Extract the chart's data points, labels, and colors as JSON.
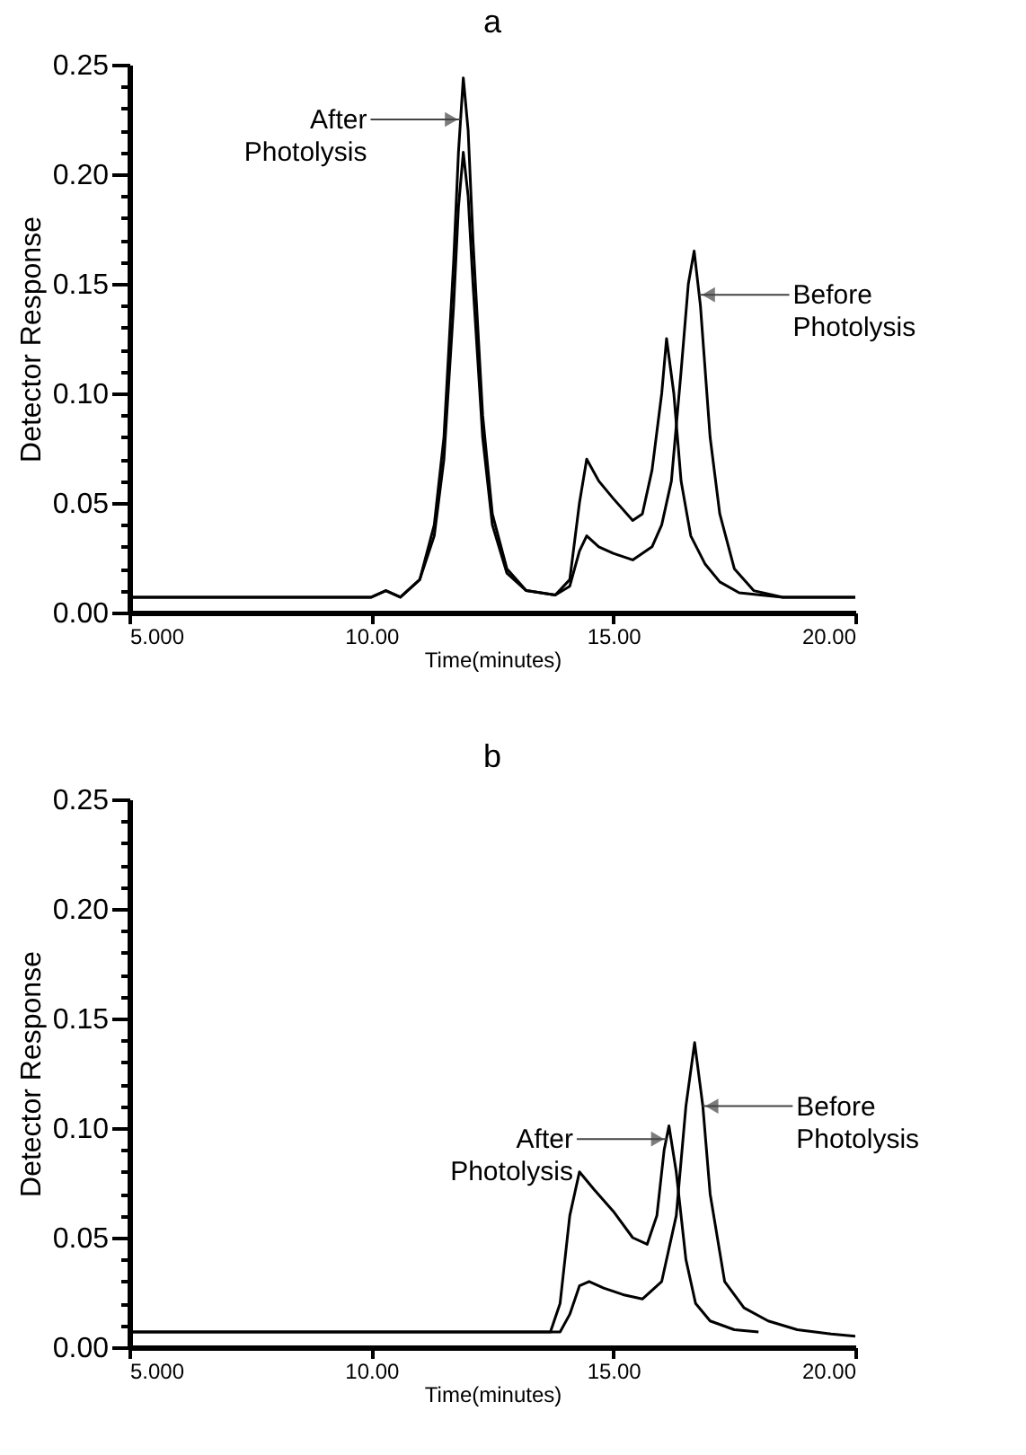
{
  "chart_data": [
    {
      "type": "line",
      "title": "a",
      "xlabel": "Time(minutes)",
      "ylabel": "Detector Response",
      "xlim": [
        5,
        20
      ],
      "xticks": [
        {
          "value": 5,
          "label": "5.000"
        },
        {
          "value": 10,
          "label": "10.00"
        },
        {
          "value": 15,
          "label": "15.00"
        },
        {
          "value": 20,
          "label": "20.00"
        }
      ],
      "ylim": [
        0,
        0.25
      ],
      "yticks": [
        {
          "value": 0,
          "label": "0.00"
        },
        {
          "value": 0.01,
          "label": null
        },
        {
          "value": 0.02,
          "label": null
        },
        {
          "value": 0.03,
          "label": null
        },
        {
          "value": 0.04,
          "label": null
        },
        {
          "value": 0.05,
          "label": "0.05"
        },
        {
          "value": 0.06,
          "label": null
        },
        {
          "value": 0.07,
          "label": null
        },
        {
          "value": 0.08,
          "label": null
        },
        {
          "value": 0.09,
          "label": null
        },
        {
          "value": 0.1,
          "label": "0.10"
        },
        {
          "value": 0.11,
          "label": null
        },
        {
          "value": 0.12,
          "label": null
        },
        {
          "value": 0.13,
          "label": null
        },
        {
          "value": 0.14,
          "label": null
        },
        {
          "value": 0.15,
          "label": "0.15"
        },
        {
          "value": 0.16,
          "label": null
        },
        {
          "value": 0.17,
          "label": null
        },
        {
          "value": 0.18,
          "label": null
        },
        {
          "value": 0.19,
          "label": null
        },
        {
          "value": 0.2,
          "label": "0.20"
        },
        {
          "value": 0.21,
          "label": null
        },
        {
          "value": 0.22,
          "label": null
        },
        {
          "value": 0.23,
          "label": null
        },
        {
          "value": 0.24,
          "label": null
        },
        {
          "value": 0.25,
          "label": "0.25"
        }
      ],
      "series": [
        {
          "color": "#000000",
          "x": [
            5,
            10,
            10.3,
            10.6,
            11,
            11.3,
            11.5,
            11.7,
            11.8,
            11.9,
            12,
            12.1,
            12.3,
            12.5,
            12.8,
            13.2,
            13.8,
            14.1,
            14.3,
            14.45,
            14.7,
            15,
            15.4,
            15.6,
            15.8,
            16,
            16.1,
            16.25,
            16.4,
            16.6,
            16.9,
            17.2,
            17.6,
            18.5,
            20
          ],
          "values": [
            0.007,
            0.007,
            0.01,
            0.007,
            0.015,
            0.04,
            0.08,
            0.16,
            0.21,
            0.244,
            0.22,
            0.17,
            0.09,
            0.045,
            0.02,
            0.01,
            0.008,
            0.015,
            0.05,
            0.07,
            0.06,
            0.052,
            0.042,
            0.045,
            0.065,
            0.1,
            0.125,
            0.1,
            0.06,
            0.035,
            0.022,
            0.014,
            0.009,
            0.007,
            0.007
          ]
        },
        {
          "color": "#000000",
          "x": [
            5,
            10,
            10.3,
            10.6,
            11,
            11.3,
            11.5,
            11.7,
            11.8,
            11.9,
            12,
            12.1,
            12.3,
            12.5,
            12.8,
            13.2,
            13.8,
            14.1,
            14.3,
            14.45,
            14.7,
            15,
            15.4,
            15.8,
            16,
            16.2,
            16.4,
            16.55,
            16.67,
            16.8,
            17,
            17.2,
            17.5,
            17.9,
            18.5,
            20
          ],
          "values": [
            0.007,
            0.007,
            0.01,
            0.007,
            0.015,
            0.035,
            0.07,
            0.14,
            0.185,
            0.21,
            0.19,
            0.15,
            0.08,
            0.04,
            0.018,
            0.01,
            0.008,
            0.012,
            0.028,
            0.035,
            0.03,
            0.027,
            0.024,
            0.03,
            0.04,
            0.06,
            0.11,
            0.15,
            0.165,
            0.14,
            0.08,
            0.045,
            0.02,
            0.01,
            0.007,
            0.007
          ]
        }
      ],
      "annotations": [
        {
          "text": "After Photolysis",
          "x": 11.84,
          "y": 0.225
        },
        {
          "text": "Before Photolysis",
          "x": 16.78,
          "y": 0.145
        }
      ]
    },
    {
      "type": "line",
      "title": "b",
      "xlabel": "Time(minutes)",
      "ylabel": "Detector Response",
      "xlim": [
        5,
        20
      ],
      "xticks": [
        {
          "value": 5,
          "label": "5.000"
        },
        {
          "value": 10,
          "label": "10.00"
        },
        {
          "value": 15,
          "label": "15.00"
        },
        {
          "value": 20,
          "label": "20.00"
        }
      ],
      "ylim": [
        0,
        0.25
      ],
      "yticks": [
        {
          "value": 0,
          "label": "0.00"
        },
        {
          "value": 0.01,
          "label": null
        },
        {
          "value": 0.02,
          "label": null
        },
        {
          "value": 0.03,
          "label": null
        },
        {
          "value": 0.04,
          "label": null
        },
        {
          "value": 0.05,
          "label": "0.05"
        },
        {
          "value": 0.06,
          "label": null
        },
        {
          "value": 0.07,
          "label": null
        },
        {
          "value": 0.08,
          "label": null
        },
        {
          "value": 0.09,
          "label": null
        },
        {
          "value": 0.1,
          "label": "0.10"
        },
        {
          "value": 0.11,
          "label": null
        },
        {
          "value": 0.12,
          "label": null
        },
        {
          "value": 0.13,
          "label": null
        },
        {
          "value": 0.14,
          "label": null
        },
        {
          "value": 0.15,
          "label": "0.15"
        },
        {
          "value": 0.16,
          "label": null
        },
        {
          "value": 0.17,
          "label": null
        },
        {
          "value": 0.18,
          "label": null
        },
        {
          "value": 0.19,
          "label": null
        },
        {
          "value": 0.2,
          "label": "0.20"
        },
        {
          "value": 0.21,
          "label": null
        },
        {
          "value": 0.22,
          "label": null
        },
        {
          "value": 0.23,
          "label": null
        },
        {
          "value": 0.24,
          "label": null
        },
        {
          "value": 0.25,
          "label": "0.25"
        }
      ],
      "series": [
        {
          "color": "#000000",
          "x": [
            5,
            13.7,
            13.9,
            14.1,
            14.3,
            14.6,
            15,
            15.4,
            15.7,
            15.9,
            16.05,
            16.15,
            16.3,
            16.5,
            16.7,
            17,
            17.5,
            18
          ],
          "values": [
            0.007,
            0.007,
            0.02,
            0.06,
            0.08,
            0.072,
            0.062,
            0.05,
            0.047,
            0.06,
            0.09,
            0.101,
            0.08,
            0.04,
            0.02,
            0.012,
            0.008,
            0.007
          ]
        },
        {
          "color": "#000000",
          "x": [
            5,
            13.9,
            14.1,
            14.3,
            14.5,
            14.8,
            15.2,
            15.6,
            16,
            16.3,
            16.5,
            16.68,
            16.85,
            17,
            17.3,
            17.7,
            18.2,
            18.8,
            19.5,
            20
          ],
          "values": [
            0.007,
            0.007,
            0.015,
            0.028,
            0.03,
            0.027,
            0.024,
            0.022,
            0.03,
            0.06,
            0.11,
            0.139,
            0.11,
            0.07,
            0.03,
            0.018,
            0.012,
            0.008,
            0.006,
            0.005
          ]
        }
      ],
      "annotations": [
        {
          "text": "After Photolysis",
          "x": 16.1,
          "y": 0.095
        },
        {
          "text": "Before Photolysis",
          "x": 16.85,
          "y": 0.11
        }
      ]
    }
  ]
}
